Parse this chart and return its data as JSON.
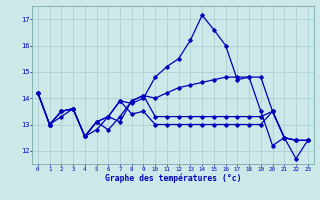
{
  "xlabel": "Graphe des températures (°c)",
  "xlim": [
    -0.5,
    23.5
  ],
  "ylim": [
    11.5,
    17.5
  ],
  "yticks": [
    12,
    13,
    14,
    15,
    16,
    17
  ],
  "xticks": [
    0,
    1,
    2,
    3,
    4,
    5,
    6,
    7,
    8,
    9,
    10,
    11,
    12,
    13,
    14,
    15,
    16,
    17,
    18,
    19,
    20,
    21,
    22,
    23
  ],
  "bg_color": "#cce8e8",
  "line_color": "#0000bb",
  "grid_color": "#a8cccc",
  "series": [
    {
      "x": [
        0,
        1,
        2,
        3,
        4,
        5,
        6,
        7,
        8,
        9,
        10,
        11,
        12,
        13,
        14,
        15,
        16,
        17,
        18,
        19,
        20,
        21,
        22
      ],
      "y": [
        14.2,
        13.0,
        13.3,
        13.6,
        12.55,
        12.8,
        13.3,
        13.9,
        13.8,
        14.0,
        14.8,
        15.2,
        15.5,
        16.2,
        17.15,
        16.6,
        16.0,
        14.7,
        14.8,
        13.5,
        12.2,
        12.5,
        12.4
      ]
    },
    {
      "x": [
        0,
        1,
        2,
        3,
        4,
        5,
        6,
        7,
        8,
        9,
        10,
        11,
        12,
        13,
        14,
        15,
        16,
        17,
        18,
        19,
        20,
        21,
        22,
        23
      ],
      "y": [
        14.2,
        13.0,
        13.5,
        13.6,
        12.55,
        13.1,
        13.3,
        13.1,
        13.9,
        14.1,
        13.3,
        13.3,
        13.3,
        13.3,
        13.3,
        13.3,
        13.3,
        13.3,
        13.3,
        13.3,
        13.5,
        12.5,
        12.4,
        12.4
      ]
    },
    {
      "x": [
        0,
        1,
        2,
        3,
        4,
        5,
        6,
        7,
        8,
        9,
        10,
        11,
        12,
        13,
        14,
        15,
        16,
        17,
        18,
        19,
        20,
        21,
        22,
        23
      ],
      "y": [
        14.2,
        13.0,
        13.5,
        13.6,
        12.55,
        13.1,
        13.3,
        13.9,
        13.4,
        13.5,
        13.0,
        13.0,
        13.0,
        13.0,
        13.0,
        13.0,
        13.0,
        13.0,
        13.0,
        13.0,
        13.5,
        12.5,
        11.7,
        12.4
      ]
    },
    {
      "x": [
        0,
        1,
        2,
        3,
        4,
        5,
        6,
        7,
        8,
        9,
        10,
        11,
        12,
        13,
        14,
        15,
        16,
        17,
        18,
        19,
        20,
        21,
        22,
        23
      ],
      "y": [
        14.2,
        13.0,
        13.5,
        13.6,
        12.55,
        13.1,
        12.8,
        13.3,
        13.9,
        14.1,
        14.0,
        14.2,
        14.4,
        14.5,
        14.6,
        14.7,
        14.8,
        14.8,
        14.8,
        14.8,
        13.5,
        12.5,
        12.4,
        12.4
      ]
    }
  ]
}
